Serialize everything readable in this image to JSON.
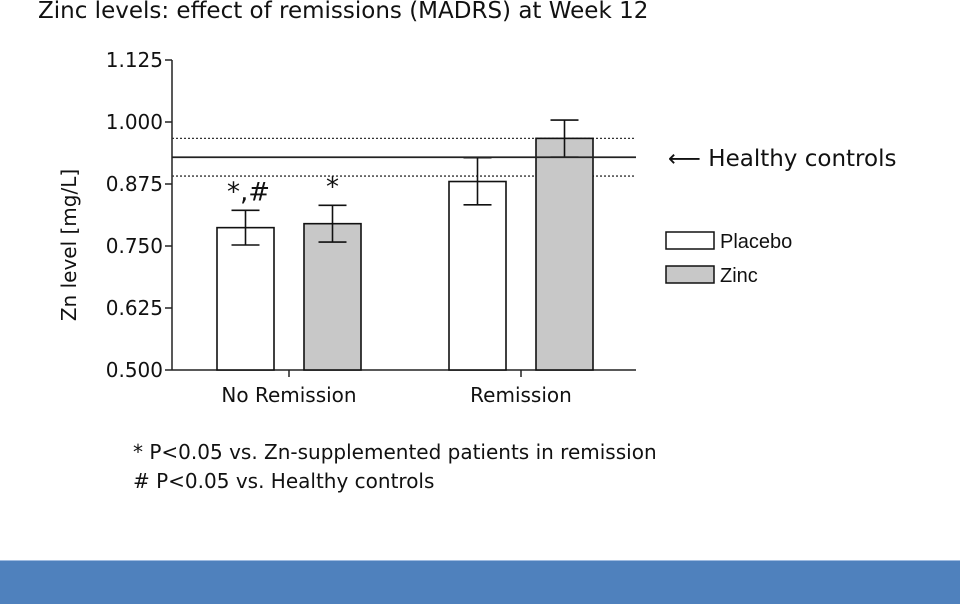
{
  "slide": {
    "title": "Zinc levels: effect of remissions (MADRS) at Week 12",
    "footnotes": [
      "* P<0.05 vs. Zn-supplemented patients in remission",
      "# P<0.05 vs. Healthy controls"
    ],
    "footer_color": "#4f81bd"
  },
  "chart_data": {
    "type": "bar",
    "title": "Zinc levels: effect of remissions (MADRS) at Week 12",
    "ylabel": "Zn level [mg/L]",
    "xlabel": "",
    "ylim": [
      0.5,
      1.125
    ],
    "yticks": [
      "0.500",
      "0.625",
      "0.750",
      "0.875",
      "1.000",
      "1.125"
    ],
    "categories": [
      "No Remission",
      "Remission"
    ],
    "series": [
      {
        "name": "Placebo",
        "color": "#ffffff",
        "values": [
          0.787,
          0.88
        ],
        "error_low": [
          0.752,
          0.833
        ],
        "error_high": [
          0.822,
          0.928
        ]
      },
      {
        "name": "Zinc",
        "color": "#c8c8c8",
        "values": [
          0.795,
          0.967
        ],
        "error_low": [
          0.758,
          0.929
        ],
        "error_high": [
          0.832,
          1.004
        ]
      }
    ],
    "bar_annotations": [
      {
        "category": "No Remission",
        "series": "Placebo",
        "text": "*,#"
      },
      {
        "category": "No Remission",
        "series": "Zinc",
        "text": "*"
      }
    ],
    "reference": {
      "label": "Healthy controls",
      "arrow": "⟵",
      "mean": 0.929,
      "band_low": 0.891,
      "band_high": 0.967
    },
    "legend": {
      "placement": "right"
    },
    "grid": false
  }
}
